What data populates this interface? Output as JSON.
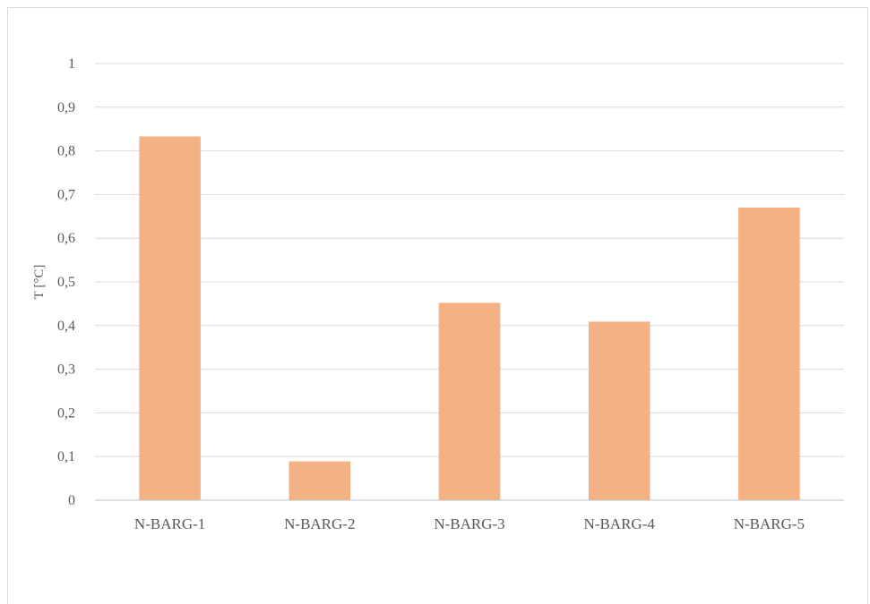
{
  "chart_data": {
    "type": "bar",
    "categories": [
      "N-BARG-1",
      "N-BARG-2",
      "N-BARG-3",
      "N-BARG-4",
      "N-BARG-5"
    ],
    "values": [
      0.833,
      0.089,
      0.452,
      0.409,
      0.67
    ],
    "title": "",
    "xlabel": "",
    "ylabel": "T [°C]",
    "ylim": [
      0,
      1
    ],
    "yticks": [
      0,
      0.1,
      0.2,
      0.3,
      0.4,
      0.5,
      0.6,
      0.7,
      0.8,
      0.9,
      1
    ],
    "ytick_labels": [
      "0",
      "0,1",
      "0,2",
      "0,3",
      "0,4",
      "0,5",
      "0,6",
      "0,7",
      "0,8",
      "0,9",
      "1"
    ],
    "grid": true,
    "legend": "none",
    "colors": {
      "bar": "#F4B183",
      "grid": "#d9d9d9",
      "axis": "#bfbfbf",
      "text": "#595959"
    }
  }
}
